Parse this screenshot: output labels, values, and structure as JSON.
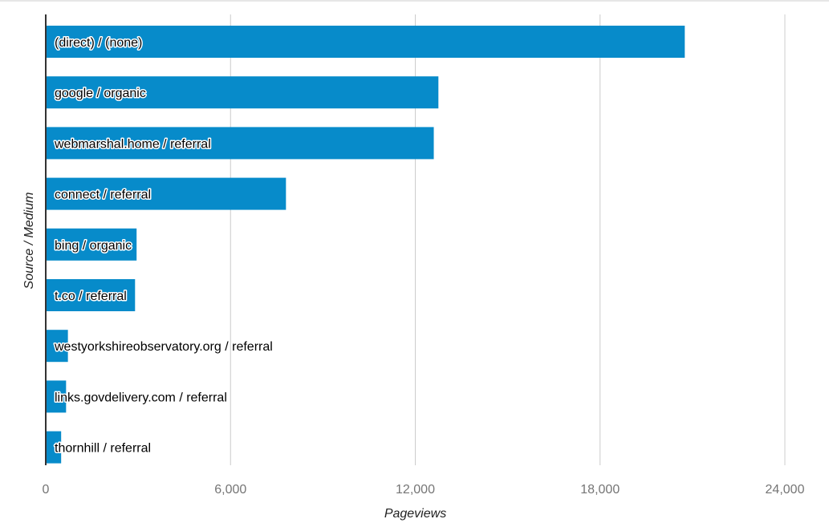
{
  "chart_data": {
    "type": "bar",
    "orientation": "horizontal",
    "categories": [
      "(direct) / (none)",
      "google / organic",
      "webmarshal.home / referral",
      "connect / referral",
      "bing / organic",
      "t.co / referral",
      "westyorkshireobservatory.org / referral",
      "links.govdelivery.com / referral",
      "thornhill / referral"
    ],
    "values": [
      20750,
      12750,
      12600,
      7800,
      2950,
      2900,
      720,
      660,
      500
    ],
    "xlabel": "Pageviews",
    "ylabel": "Source / Medium",
    "xlim": [
      0,
      24000
    ],
    "xticks": [
      0,
      6000,
      12000,
      18000,
      24000
    ],
    "xtick_labels": [
      "0",
      "6,000",
      "12,000",
      "18,000",
      "24,000"
    ],
    "grid": true,
    "bar_color": "#078bca",
    "grid_color": "#cccccc",
    "axis_color": "#333333"
  }
}
